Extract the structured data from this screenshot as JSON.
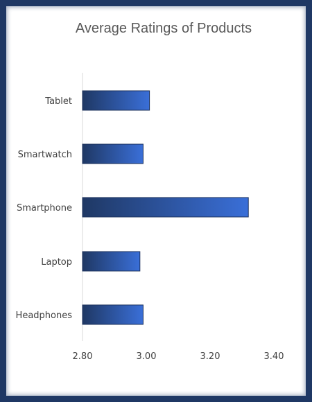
{
  "chart_data": {
    "type": "bar",
    "orientation": "horizontal",
    "title": "Average Ratings of Products",
    "categories": [
      "Headphones",
      "Laptop",
      "Smartphone",
      "Smartwatch",
      "Tablet"
    ],
    "values": [
      2.99,
      2.98,
      3.32,
      2.99,
      3.01
    ],
    "xlim": [
      2.8,
      3.4
    ],
    "xticks": [
      "2.80",
      "3.00",
      "3.20",
      "3.40"
    ],
    "grid": false,
    "legend": "none",
    "bar_color_start": "#1f3864",
    "bar_color_end": "#3a6fd8",
    "frame_color": "#1f3864"
  }
}
